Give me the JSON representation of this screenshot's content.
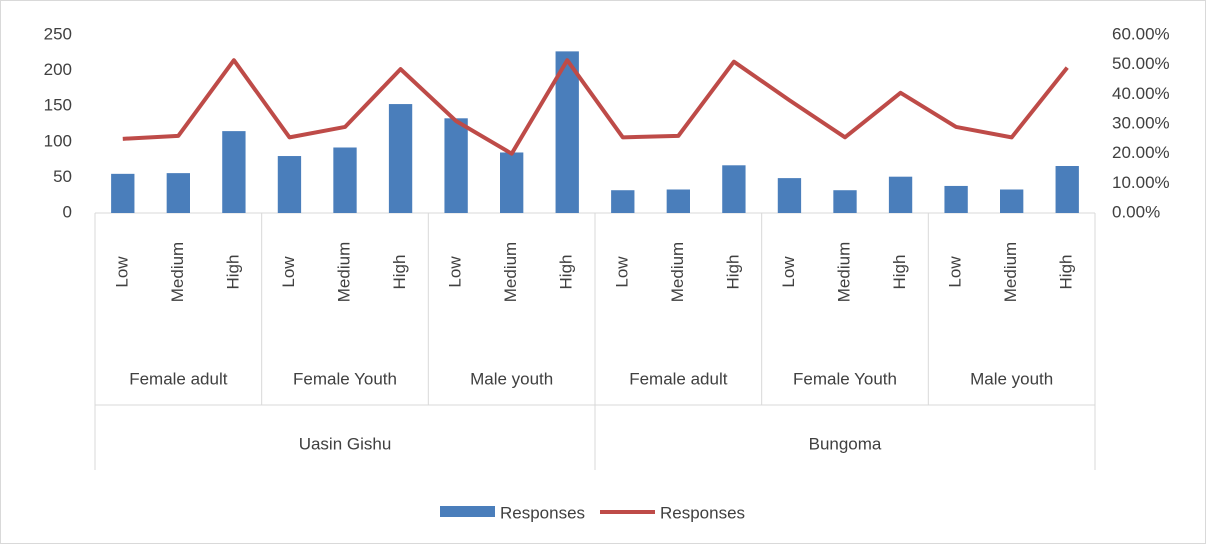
{
  "chart_data": {
    "type": "bar-line",
    "categories": [
      "Low",
      "Medium",
      "High",
      "Low",
      "Medium",
      "High",
      "Low",
      "Medium",
      "High",
      "Low",
      "Medium",
      "High",
      "Low",
      "Medium",
      "High",
      "Low",
      "Medium",
      "High"
    ],
    "regions": [
      {
        "name": "Uasin Gishu",
        "groups": [
          "Female adult",
          "Female Youth",
          "Male youth"
        ]
      },
      {
        "name": "Bungoma",
        "groups": [
          "Female adult",
          "Female Youth",
          "Male youth"
        ]
      }
    ],
    "series": [
      {
        "name": "Responses",
        "type": "bar",
        "color": "#4a7ebb",
        "values": [
          55,
          56,
          115,
          80,
          92,
          153,
          133,
          85,
          227,
          32,
          33,
          67,
          49,
          32,
          51,
          38,
          33,
          66
        ]
      },
      {
        "name": "Responses",
        "type": "line",
        "axis": "y2",
        "color": "#be4b48",
        "values": [
          25,
          26,
          51.5,
          25.5,
          29,
          48.5,
          31,
          20,
          51.5,
          25.5,
          26,
          51,
          38,
          25.5,
          40.5,
          29,
          25.5,
          49
        ]
      }
    ],
    "ylim": [
      0,
      250
    ],
    "yticks": [
      0,
      50,
      100,
      150,
      200,
      250
    ],
    "y2lim": [
      0,
      60
    ],
    "y2ticks": [
      {
        "value": 0,
        "label": "0.00%"
      },
      {
        "value": 10,
        "label": "10.00%"
      },
      {
        "value": 20,
        "label": "20.00%"
      },
      {
        "value": 30,
        "label": "30.00%"
      },
      {
        "value": 40,
        "label": "40.00%"
      },
      {
        "value": 50,
        "label": "50.00%"
      },
      {
        "value": 60,
        "label": "60.00%"
      }
    ],
    "legend": "bottom"
  }
}
